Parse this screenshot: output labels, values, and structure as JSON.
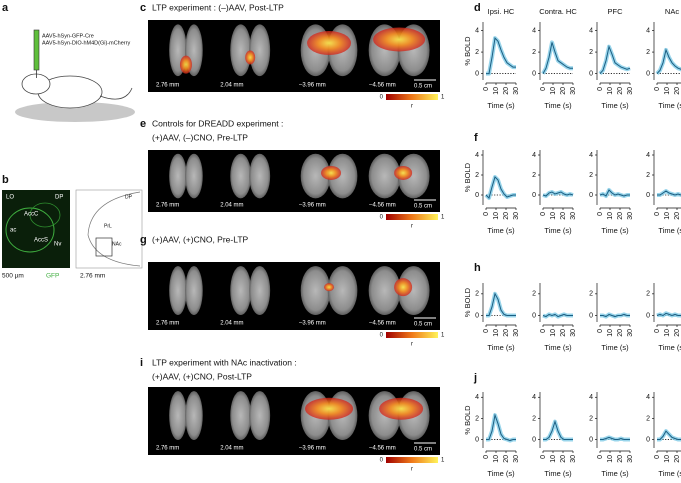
{
  "panel_a": {
    "label": "a",
    "vectors": [
      "AAV5-hSyn-GFP-Cre",
      "AAV5-hSyn-DIO-hM4D(Gi)-mCherry"
    ]
  },
  "panel_b": {
    "label": "b",
    "regions": [
      "LO",
      "DP",
      "AccC",
      "ac",
      "AccS",
      "Nv"
    ],
    "atlas_regions": [
      "PrL",
      "DP",
      "NAc"
    ],
    "scale": "500 µm",
    "stain": "GFP",
    "level": "2.76 mm"
  },
  "maps": [
    {
      "label": "c",
      "title": [
        "LTP experiment : (–)AAV, Post-LTP"
      ],
      "slices": [
        "2.76 mm",
        "2.04 mm",
        "–3.96 mm",
        "–4.56 mm"
      ],
      "scale": "0.5 cm",
      "colorbar": {
        "min": 0,
        "max": 1,
        "label": "r"
      }
    },
    {
      "label": "e",
      "title": [
        "Controls for DREADD experiment :",
        "(+)AAV, (–)CNO, Pre-LTP"
      ],
      "slices": [
        "2.76 mm",
        "2.04 mm",
        "–3.96 mm",
        "–4.56 mm"
      ],
      "scale": "0.5 cm",
      "colorbar": {
        "min": 0,
        "max": 1,
        "label": "r"
      }
    },
    {
      "label": "g",
      "title": [
        "(+)AAV, (+)CNO, Pre-LTP"
      ],
      "slices": [
        "2.76 mm",
        "2.04 mm",
        "–3.96 mm",
        "–4.56 mm"
      ],
      "scale": "0.5 cm",
      "colorbar": {
        "min": 0,
        "max": 1,
        "label": "r"
      }
    },
    {
      "label": "i",
      "title": [
        "LTP experiment with NAc inactivation :",
        "(+)AAV, (+)CNO, Post-LTP"
      ],
      "slices": [
        "2.76 mm",
        "2.04 mm",
        "–3.96 mm",
        "–4.56 mm"
      ],
      "scale": "0.5 cm",
      "colorbar": {
        "min": 0,
        "max": 1,
        "label": "r"
      }
    }
  ],
  "chart_panel_labels": [
    "d",
    "f",
    "h",
    "j"
  ],
  "chart_data": [
    {
      "type": "line",
      "title": "Ipsi. HC",
      "ylabel": "% BOLD",
      "xlabel": "Time (s)",
      "x": [
        0,
        3,
        6,
        9,
        12,
        15,
        18,
        21,
        24,
        27,
        30
      ],
      "series": [
        {
          "color": "#1b5e82",
          "values": [
            0,
            0,
            1.5,
            3.3,
            3.0,
            2.2,
            1.5,
            1.0,
            0.8,
            0.6,
            0.6
          ]
        }
      ],
      "xlim": [
        0,
        30
      ],
      "ylim": [
        -0.6,
        4.8
      ],
      "xticks": [
        0,
        10,
        20,
        30
      ],
      "yticks": [
        0,
        2,
        4
      ]
    },
    {
      "type": "line",
      "title": "Contra. HC",
      "xlabel": "Time (s)",
      "x": [
        0,
        3,
        6,
        9,
        12,
        15,
        18,
        21,
        24,
        27,
        30
      ],
      "series": [
        {
          "color": "#1b5e82",
          "values": [
            0,
            0.5,
            1.5,
            2.9,
            2.0,
            1.2,
            1.0,
            0.8,
            0.6,
            0.5,
            0.5
          ]
        }
      ],
      "xlim": [
        0,
        30
      ],
      "ylim": [
        -0.6,
        4.8
      ],
      "xticks": [
        0,
        10,
        20,
        30
      ],
      "yticks": [
        0,
        2,
        4
      ]
    },
    {
      "type": "line",
      "title": "PFC",
      "xlabel": "Time (s)",
      "x": [
        0,
        3,
        6,
        9,
        12,
        15,
        18,
        21,
        24,
        27,
        30
      ],
      "series": [
        {
          "color": "#1b5e82",
          "values": [
            0,
            0.3,
            1.2,
            2.5,
            1.8,
            1.0,
            0.8,
            0.6,
            0.5,
            0.4,
            0.5
          ]
        }
      ],
      "xlim": [
        0,
        30
      ],
      "ylim": [
        -0.6,
        4.8
      ],
      "xticks": [
        0,
        10,
        20,
        30
      ],
      "yticks": [
        0,
        2,
        4
      ]
    },
    {
      "type": "line",
      "title": "NAc",
      "xlabel": "Time (s)",
      "x": [
        0,
        3,
        6,
        9,
        12,
        15,
        18,
        21,
        24,
        27,
        30
      ],
      "series": [
        {
          "color": "#1b5e82",
          "values": [
            0,
            0.3,
            1.0,
            2.2,
            1.5,
            1.0,
            0.7,
            0.5,
            0.4,
            0.3,
            0.3
          ]
        }
      ],
      "xlim": [
        0,
        30
      ],
      "ylim": [
        -0.6,
        4.8
      ],
      "xticks": [
        0,
        10,
        20,
        30
      ],
      "yticks": [
        0,
        2,
        4
      ]
    },
    {
      "type": "line",
      "ylabel": "% BOLD",
      "xlabel": "Time (s)",
      "x": [
        0,
        3,
        6,
        9,
        12,
        15,
        18,
        21,
        24,
        27,
        30
      ],
      "series": [
        {
          "color": "#1b5e82",
          "values": [
            0,
            -0.3,
            0.8,
            1.8,
            1.5,
            0.6,
            0.1,
            -0.2,
            -0.1,
            0,
            0
          ]
        }
      ],
      "xlim": [
        0,
        30
      ],
      "ylim": [
        -1,
        4.5
      ],
      "xticks": [
        0,
        10,
        20,
        30
      ],
      "yticks": [
        0,
        2,
        4
      ]
    },
    {
      "type": "line",
      "xlabel": "Time (s)",
      "x": [
        0,
        3,
        6,
        9,
        12,
        15,
        18,
        21,
        24,
        27,
        30
      ],
      "series": [
        {
          "color": "#1b5e82",
          "values": [
            0,
            -0.1,
            0.2,
            0.3,
            0.1,
            0.2,
            0.3,
            0.1,
            0,
            0.1,
            0
          ]
        }
      ],
      "xlim": [
        0,
        30
      ],
      "ylim": [
        -1,
        4.5
      ],
      "xticks": [
        0,
        10,
        20,
        30
      ],
      "yticks": [
        0,
        2,
        4
      ]
    },
    {
      "type": "line",
      "xlabel": "Time (s)",
      "x": [
        0,
        3,
        6,
        9,
        12,
        15,
        18,
        21,
        24,
        27,
        30
      ],
      "series": [
        {
          "color": "#1b5e82",
          "values": [
            0,
            0.1,
            -0.1,
            0.5,
            0.2,
            0,
            0.1,
            0,
            -0.1,
            0,
            0
          ]
        }
      ],
      "xlim": [
        0,
        30
      ],
      "ylim": [
        -1,
        4.5
      ],
      "xticks": [
        0,
        10,
        20,
        30
      ],
      "yticks": [
        0,
        2,
        4
      ]
    },
    {
      "type": "line",
      "xlabel": "Time (s)",
      "x": [
        0,
        3,
        6,
        9,
        12,
        15,
        18,
        21,
        24,
        27,
        30
      ],
      "series": [
        {
          "color": "#1b5e82",
          "values": [
            0,
            0,
            0.2,
            0.4,
            0.2,
            0.1,
            0,
            0.1,
            0,
            0,
            0
          ]
        }
      ],
      "xlim": [
        0,
        30
      ],
      "ylim": [
        -1,
        4.5
      ],
      "xticks": [
        0,
        10,
        20,
        30
      ],
      "yticks": [
        0,
        2,
        4
      ]
    },
    {
      "type": "line",
      "ylabel": "% BOLD",
      "xlabel": "Time (s)",
      "x": [
        0,
        3,
        6,
        9,
        12,
        15,
        18,
        21,
        24,
        27,
        30
      ],
      "series": [
        {
          "color": "#1b5e82",
          "values": [
            0,
            0,
            0.8,
            2.0,
            1.5,
            0.5,
            0.1,
            0,
            0,
            0,
            0
          ]
        }
      ],
      "xlim": [
        0,
        30
      ],
      "ylim": [
        -0.6,
        3
      ],
      "xticks": [
        0,
        10,
        20,
        30
      ],
      "yticks": [
        0,
        2
      ]
    },
    {
      "type": "line",
      "xlabel": "Time (s)",
      "x": [
        0,
        3,
        6,
        9,
        12,
        15,
        18,
        21,
        24,
        27,
        30
      ],
      "series": [
        {
          "color": "#1b5e82",
          "values": [
            0,
            -0.1,
            0.1,
            0,
            0.1,
            -0.1,
            0,
            0.1,
            0,
            0,
            0
          ]
        }
      ],
      "xlim": [
        0,
        30
      ],
      "ylim": [
        -0.6,
        3
      ],
      "xticks": [
        0,
        10,
        20,
        30
      ],
      "yticks": [
        0,
        2
      ]
    },
    {
      "type": "line",
      "xlabel": "Time (s)",
      "x": [
        0,
        3,
        6,
        9,
        12,
        15,
        18,
        21,
        24,
        27,
        30
      ],
      "series": [
        {
          "color": "#1b5e82",
          "values": [
            0,
            0,
            -0.1,
            0.1,
            0,
            -0.1,
            0,
            0,
            0.1,
            0,
            0
          ]
        }
      ],
      "xlim": [
        0,
        30
      ],
      "ylim": [
        -0.6,
        3
      ],
      "xticks": [
        0,
        10,
        20,
        30
      ],
      "yticks": [
        0,
        2
      ]
    },
    {
      "type": "line",
      "xlabel": "Time (s)",
      "x": [
        0,
        3,
        6,
        9,
        12,
        15,
        18,
        21,
        24,
        27,
        30
      ],
      "series": [
        {
          "color": "#1b5e82",
          "values": [
            0,
            0.1,
            0,
            0.2,
            0.1,
            0,
            0.1,
            0,
            0,
            0.1,
            0
          ]
        }
      ],
      "xlim": [
        0,
        30
      ],
      "ylim": [
        -0.6,
        3
      ],
      "xticks": [
        0,
        10,
        20,
        30
      ],
      "yticks": [
        0,
        2
      ]
    },
    {
      "type": "line",
      "ylabel": "% BOLD",
      "xlabel": "Time (s)",
      "x": [
        0,
        3,
        6,
        9,
        12,
        15,
        18,
        21,
        24,
        27,
        30
      ],
      "series": [
        {
          "color": "#1b5e82",
          "values": [
            0,
            0,
            0.8,
            2.3,
            1.5,
            0.5,
            0.1,
            0,
            -0.1,
            0,
            0
          ]
        }
      ],
      "xlim": [
        0,
        30
      ],
      "ylim": [
        -0.8,
        4.5
      ],
      "xticks": [
        0,
        10,
        20,
        30
      ],
      "yticks": [
        0,
        2,
        4
      ]
    },
    {
      "type": "line",
      "xlabel": "Time (s)",
      "x": [
        0,
        3,
        6,
        9,
        12,
        15,
        18,
        21,
        24,
        27,
        30
      ],
      "series": [
        {
          "color": "#1b5e82",
          "values": [
            0,
            0,
            0.2,
            0.8,
            1.7,
            0.8,
            0.2,
            0,
            0,
            0,
            0
          ]
        }
      ],
      "xlim": [
        0,
        30
      ],
      "ylim": [
        -0.8,
        4.5
      ],
      "xticks": [
        0,
        10,
        20,
        30
      ],
      "yticks": [
        0,
        2,
        4
      ]
    },
    {
      "type": "line",
      "xlabel": "Time (s)",
      "x": [
        0,
        3,
        6,
        9,
        12,
        15,
        18,
        21,
        24,
        27,
        30
      ],
      "series": [
        {
          "color": "#1b5e82",
          "values": [
            0,
            0,
            0.1,
            0.2,
            0.1,
            0,
            0,
            0.1,
            0,
            0,
            0
          ]
        }
      ],
      "xlim": [
        0,
        30
      ],
      "ylim": [
        -0.8,
        4.5
      ],
      "xticks": [
        0,
        10,
        20,
        30
      ],
      "yticks": [
        0,
        2,
        4
      ]
    },
    {
      "type": "line",
      "xlabel": "Time (s)",
      "x": [
        0,
        3,
        6,
        9,
        12,
        15,
        18,
        21,
        24,
        27,
        30
      ],
      "series": [
        {
          "color": "#1b5e82",
          "values": [
            0,
            0,
            0.3,
            0.8,
            0.5,
            0.2,
            0.1,
            0,
            0,
            0,
            0
          ]
        }
      ],
      "xlim": [
        0,
        30
      ],
      "ylim": [
        -0.8,
        4.5
      ],
      "xticks": [
        0,
        10,
        20,
        30
      ],
      "yticks": [
        0,
        2,
        4
      ]
    }
  ]
}
